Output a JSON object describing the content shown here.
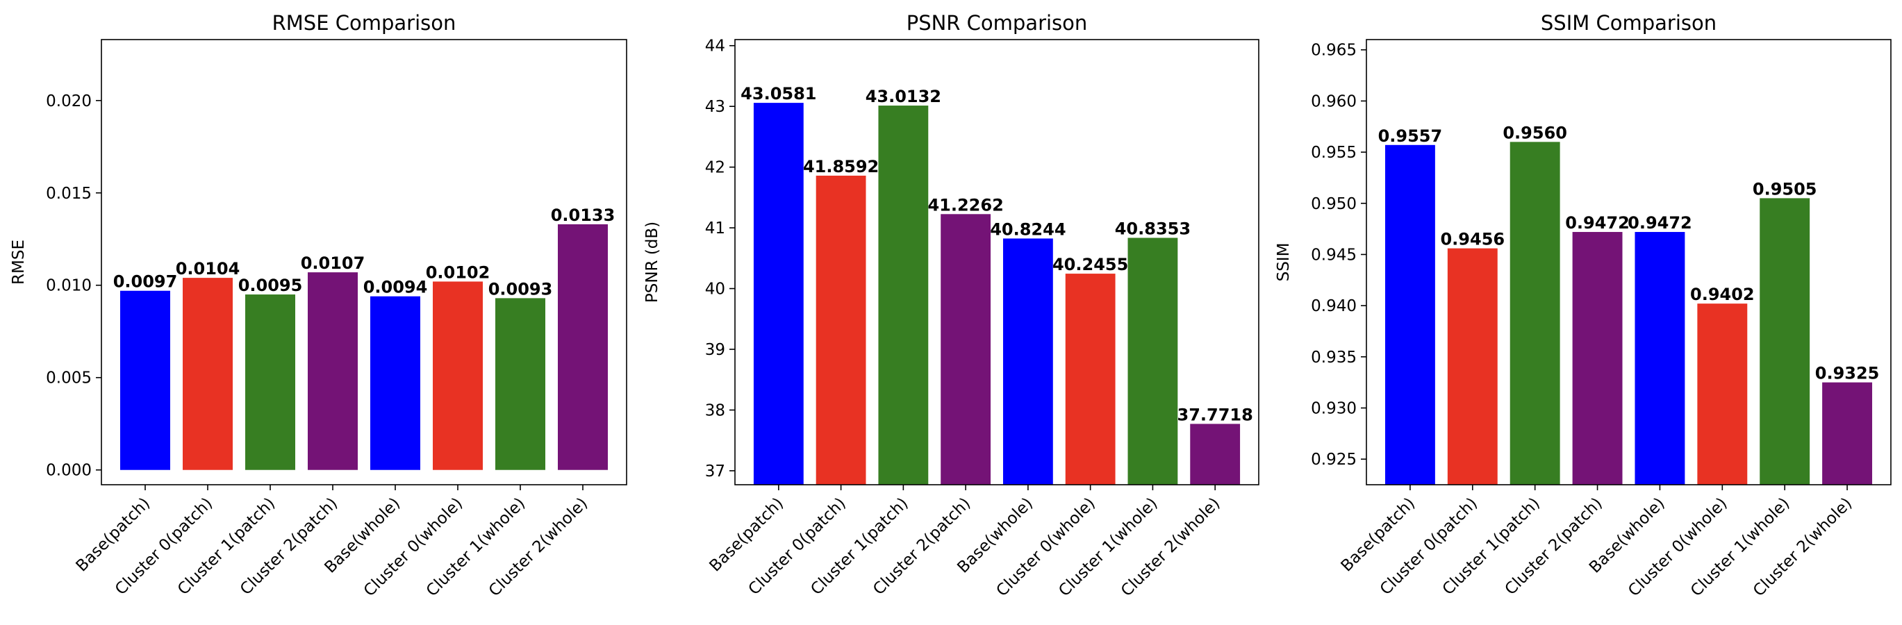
{
  "chart_data": [
    {
      "type": "bar",
      "title": "RMSE Comparison",
      "xlabel": "",
      "ylabel": "RMSE",
      "ylim": [
        -0.0008,
        0.0233
      ],
      "yticks": [
        0.0,
        0.005,
        0.01,
        0.015,
        0.02
      ],
      "ytick_labels": [
        "0.000",
        "0.005",
        "0.010",
        "0.015",
        "0.020"
      ],
      "categories": [
        "Base(patch)",
        "Cluster 0(patch)",
        "Cluster 1(patch)",
        "Cluster 2(patch)",
        "Base(whole)",
        "Cluster 0(whole)",
        "Cluster 1(whole)",
        "Cluster 2(whole)"
      ],
      "values": [
        0.0097,
        0.0104,
        0.0095,
        0.0107,
        0.0094,
        0.0102,
        0.0093,
        0.0133
      ],
      "value_labels": [
        "0.0097",
        "0.0104",
        "0.0095",
        "0.0107",
        "0.0094",
        "0.0102",
        "0.0093",
        "0.0133"
      ],
      "bar_colors": [
        "#0000ff",
        "#e83223",
        "#377e22",
        "#741376",
        "#0000ff",
        "#e83223",
        "#377e22",
        "#741376"
      ],
      "base": 0,
      "grid": false,
      "legend": "none"
    },
    {
      "type": "bar",
      "title": "PSNR Comparison",
      "xlabel": "",
      "ylabel": "PSNR (dB)",
      "ylim": [
        36.77,
        44.1
      ],
      "yticks": [
        37,
        38,
        39,
        40,
        41,
        42,
        43,
        44
      ],
      "ytick_labels": [
        "37",
        "38",
        "39",
        "40",
        "41",
        "42",
        "43",
        "44"
      ],
      "categories": [
        "Base(patch)",
        "Cluster 0(patch)",
        "Cluster 1(patch)",
        "Cluster 2(patch)",
        "Base(whole)",
        "Cluster 0(whole)",
        "Cluster 1(whole)",
        "Cluster 2(whole)"
      ],
      "values": [
        43.0581,
        41.8592,
        43.0132,
        41.2262,
        40.8244,
        40.2455,
        40.8353,
        37.7718
      ],
      "value_labels": [
        "43.0581",
        "41.8592",
        "43.0132",
        "41.2262",
        "40.8244",
        "40.2455",
        "40.8353",
        "37.7718"
      ],
      "bar_colors": [
        "#0000ff",
        "#e83223",
        "#377e22",
        "#741376",
        "#0000ff",
        "#e83223",
        "#377e22",
        "#741376"
      ],
      "base": 36.77,
      "grid": false,
      "legend": "none"
    },
    {
      "type": "bar",
      "title": "SSIM Comparison",
      "xlabel": "",
      "ylabel": "SSIM",
      "ylim": [
        0.9225,
        0.966
      ],
      "yticks": [
        0.925,
        0.93,
        0.935,
        0.94,
        0.945,
        0.95,
        0.955,
        0.96,
        0.965
      ],
      "ytick_labels": [
        "0.925",
        "0.930",
        "0.935",
        "0.940",
        "0.945",
        "0.950",
        "0.955",
        "0.960",
        "0.965"
      ],
      "categories": [
        "Base(patch)",
        "Cluster 0(patch)",
        "Cluster 1(patch)",
        "Cluster 2(patch)",
        "Base(whole)",
        "Cluster 0(whole)",
        "Cluster 1(whole)",
        "Cluster 2(whole)"
      ],
      "values": [
        0.9557,
        0.9456,
        0.956,
        0.9472,
        0.9472,
        0.9402,
        0.9505,
        0.9325
      ],
      "value_labels": [
        "0.9557",
        "0.9456",
        "0.9560",
        "0.9472",
        "0.9472",
        "0.9402",
        "0.9505",
        "0.9325"
      ],
      "bar_colors": [
        "#0000ff",
        "#e83223",
        "#377e22",
        "#741376",
        "#0000ff",
        "#e83223",
        "#377e22",
        "#741376"
      ],
      "base": 0.9225,
      "grid": false,
      "legend": "none"
    }
  ]
}
